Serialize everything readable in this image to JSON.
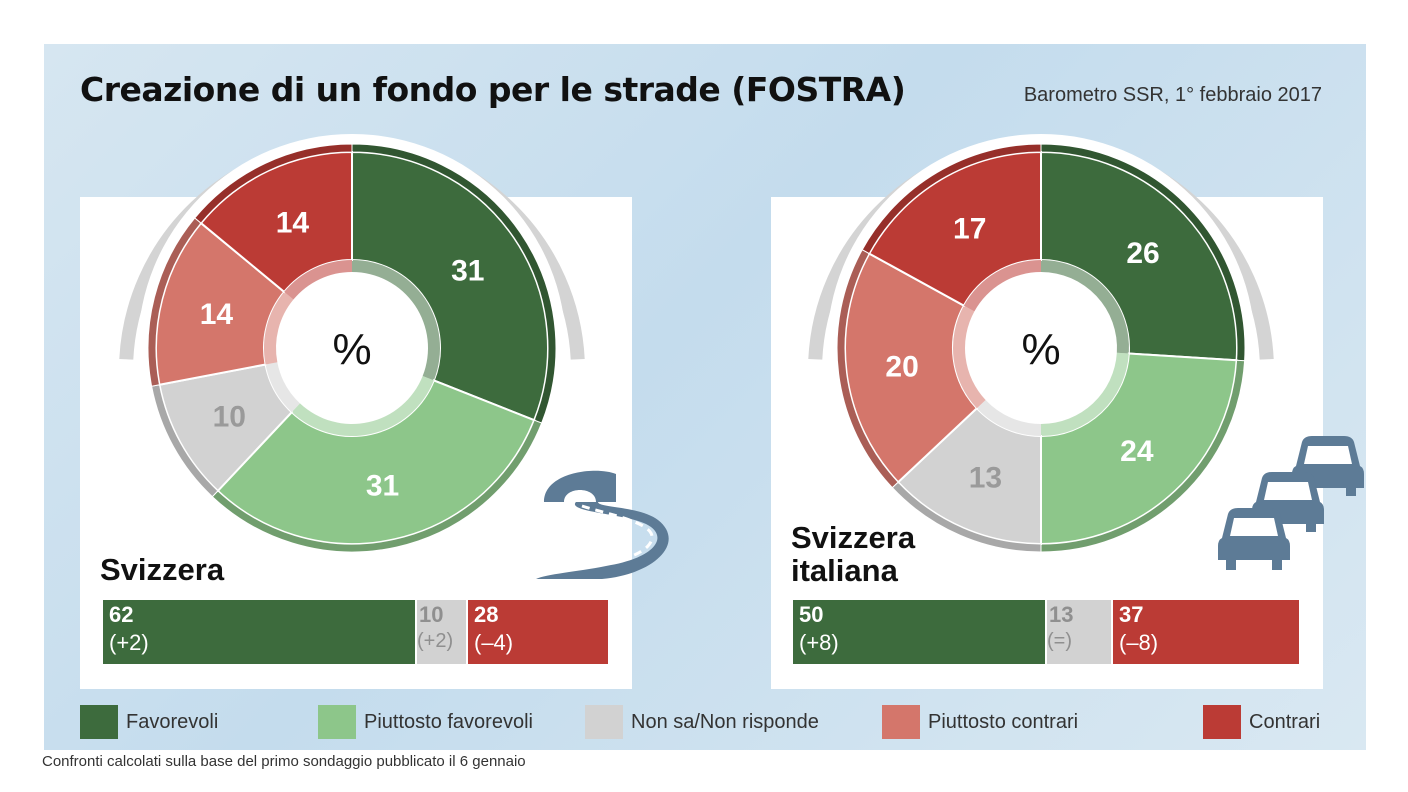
{
  "title": "Creazione di un fondo per le strade (FOSTRA)",
  "source": "Barometro SSR, 1° febbraio 2017",
  "footnote": "Confronti calcolati sulla base del primo sondaggio pubblicato il 6 gennaio",
  "colors": {
    "favorevoli": "#3d6b3d",
    "piuttosto_favorevoli": "#8dc68a",
    "non_sa": "#d2d2d2",
    "piuttosto_contrari": "#d4766b",
    "contrari": "#bb3b35"
  },
  "legend": [
    {
      "key": "favorevoli",
      "label": "Favorevoli",
      "color": "#3d6b3d"
    },
    {
      "key": "piuttosto_favorevoli",
      "label": "Piuttosto favorevoli",
      "color": "#8dc68a"
    },
    {
      "key": "non_sa",
      "label": "Non sa/Non risponde",
      "color": "#d2d2d2"
    },
    {
      "key": "piuttosto_contrari",
      "label": "Piuttosto contrari",
      "color": "#d4766b"
    },
    {
      "key": "contrari",
      "label": "Contrari",
      "color": "#bb3b35"
    }
  ],
  "chart_data": [
    {
      "type": "pie",
      "title": "Svizzera",
      "center_label": "%",
      "slices": [
        {
          "label": "Favorevoli",
          "value": 31,
          "color": "#3d6b3d"
        },
        {
          "label": "Piuttosto favorevoli",
          "value": 31,
          "color": "#8dc68a"
        },
        {
          "label": "Non sa/Non risponde",
          "value": 10,
          "color": "#d2d2d2"
        },
        {
          "label": "Piuttosto contrari",
          "value": 14,
          "color": "#d4766b"
        },
        {
          "label": "Contrari",
          "value": 14,
          "color": "#bb3b35"
        }
      ],
      "summary": [
        {
          "label": "Favorevoli",
          "value": "62",
          "change": "(+2)",
          "pct": 62,
          "color": "#3d6b3d"
        },
        {
          "label": "Non sa/Non risponde",
          "value": "10",
          "change": "(+2)",
          "pct": 10,
          "color": "#d2d2d2"
        },
        {
          "label": "Contrari",
          "value": "28",
          "change": "(–4)",
          "pct": 28,
          "color": "#bb3b35"
        }
      ]
    },
    {
      "type": "pie",
      "title": "Svizzera italiana",
      "center_label": "%",
      "slices": [
        {
          "label": "Favorevoli",
          "value": 26,
          "color": "#3d6b3d"
        },
        {
          "label": "Piuttosto favorevoli",
          "value": 24,
          "color": "#8dc68a"
        },
        {
          "label": "Non sa/Non risponde",
          "value": 13,
          "color": "#d2d2d2"
        },
        {
          "label": "Piuttosto contrari",
          "value": 20,
          "color": "#d4766b"
        },
        {
          "label": "Contrari",
          "value": 17,
          "color": "#bb3b35"
        }
      ],
      "summary": [
        {
          "label": "Favorevoli",
          "value": "50",
          "change": "(+8)",
          "pct": 50,
          "color": "#3d6b3d"
        },
        {
          "label": "Non sa/Non risponde",
          "value": "13",
          "change": "(=)",
          "pct": 13,
          "color": "#d2d2d2"
        },
        {
          "label": "Contrari",
          "value": "37",
          "change": "(–8)",
          "pct": 37,
          "color": "#bb3b35"
        }
      ]
    }
  ],
  "icons": {
    "left": "winding-road-tunnel-icon",
    "right": "traffic-cars-icon"
  }
}
